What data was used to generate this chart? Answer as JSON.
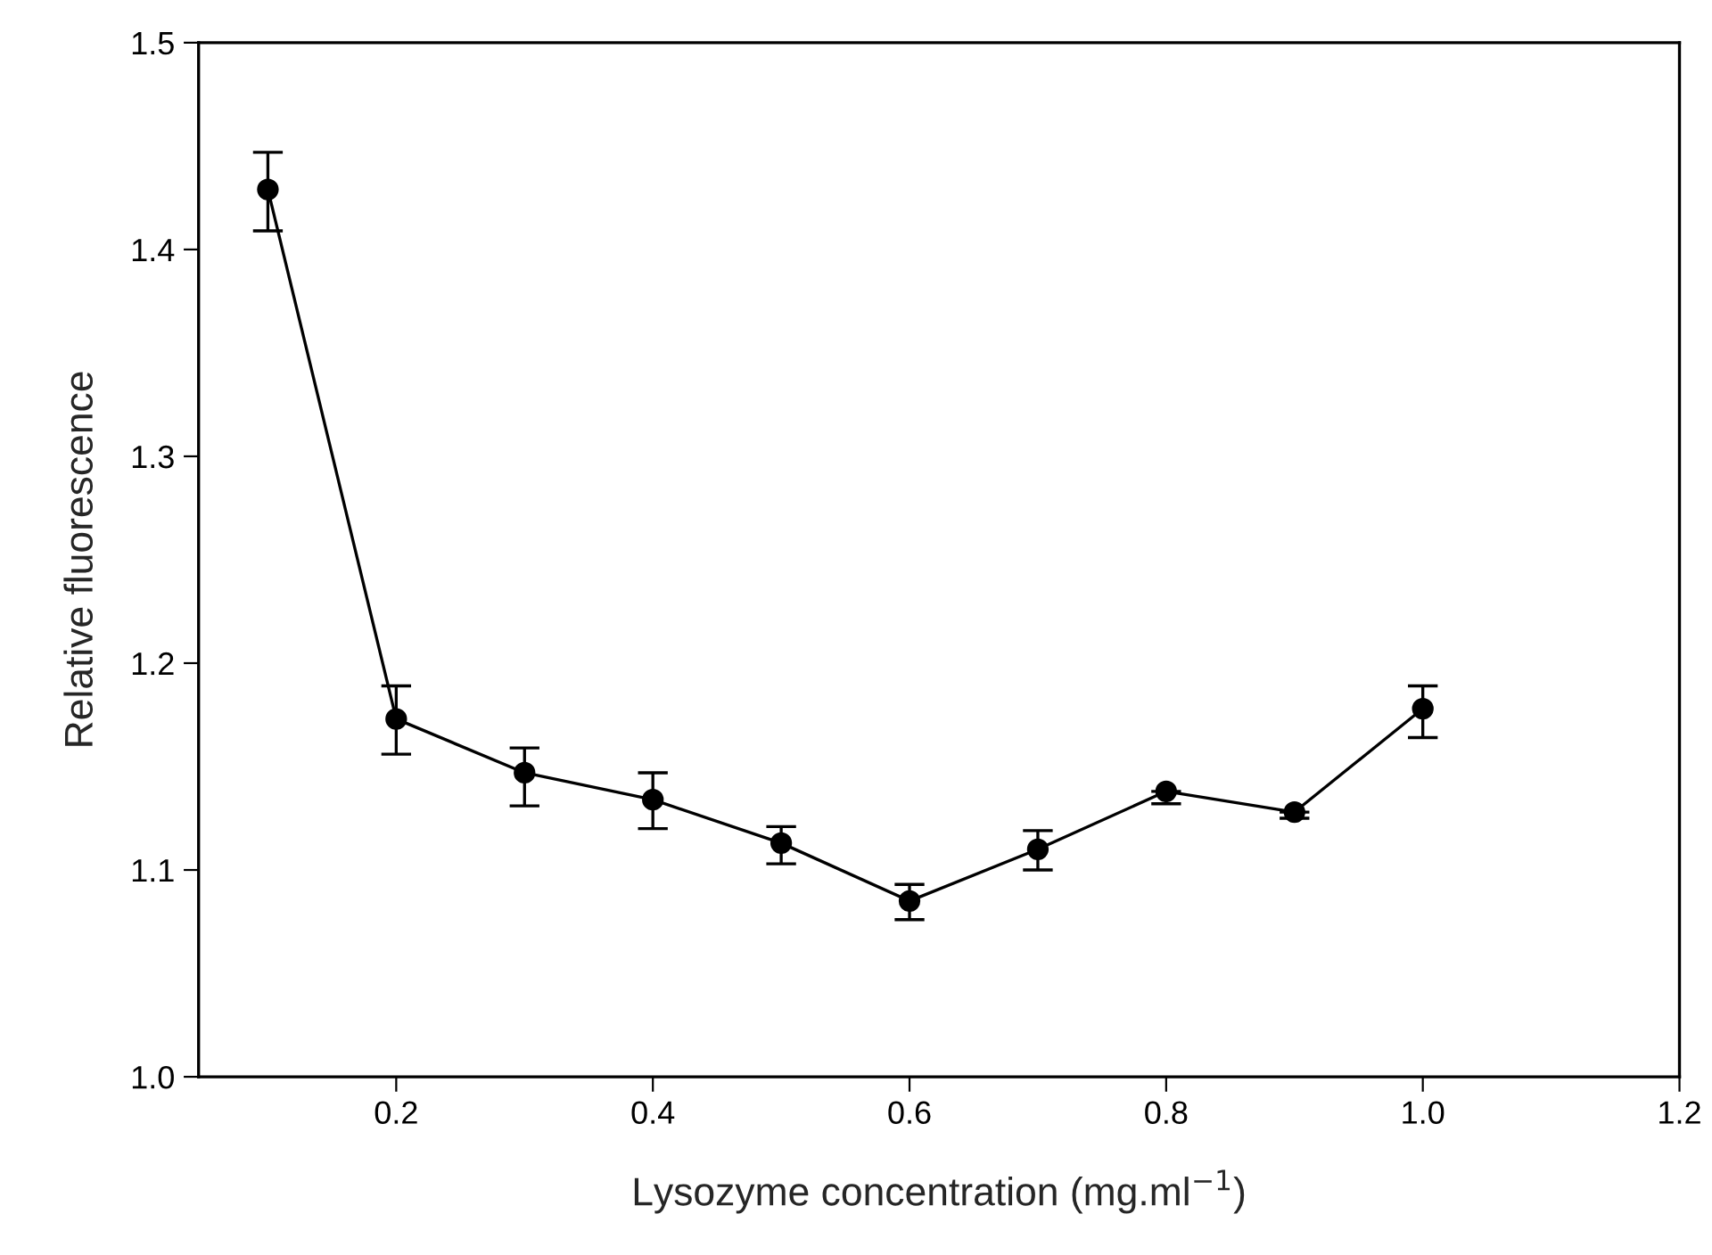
{
  "chart_data": {
    "type": "line",
    "xlabel": "Lysozyme concentration (mg.ml$^{−1}$)",
    "ylabel": "Relative fluorescence",
    "x": [
      0.1,
      0.2,
      0.3,
      0.4,
      0.5,
      0.6,
      0.7,
      0.8,
      0.9,
      1.0
    ],
    "series": [
      {
        "color": "#000000",
        "values": [
          1.429,
          1.173,
          1.147,
          1.134,
          1.113,
          1.085,
          1.11,
          1.138,
          1.128,
          1.178
        ],
        "errors": [
          [
            1.409,
            1.447
          ],
          [
            1.156,
            1.189
          ],
          [
            1.131,
            1.159
          ],
          [
            1.12,
            1.147
          ],
          [
            1.103,
            1.121
          ],
          [
            1.076,
            1.093
          ],
          [
            1.1,
            1.119
          ],
          [
            1.132,
            1.138
          ],
          [
            1.125,
            1.128
          ],
          [
            1.164,
            1.189
          ]
        ]
      }
    ],
    "xlim": [
      0.046,
      1.2
    ],
    "ylim": [
      1.0,
      1.5
    ],
    "xticks": [
      {
        "value": 0.2,
        "label": "0.2"
      },
      {
        "value": 0.4,
        "label": "0.4"
      },
      {
        "value": 0.6,
        "label": "0.6"
      },
      {
        "value": 0.8,
        "label": "0.8"
      },
      {
        "value": 1.0,
        "label": "1.0"
      },
      {
        "value": 1.2,
        "label": "1.2"
      }
    ],
    "yticks": [
      {
        "value": 1.0,
        "label": "1.0"
      },
      {
        "value": 1.1,
        "label": "1.1"
      },
      {
        "value": 1.2,
        "label": "1.2"
      },
      {
        "value": 1.3,
        "label": "1.3"
      },
      {
        "value": 1.4,
        "label": "1.4"
      },
      {
        "value": 1.5,
        "label": "1.5"
      }
    ],
    "marker": "circle",
    "line_style": "solid"
  }
}
